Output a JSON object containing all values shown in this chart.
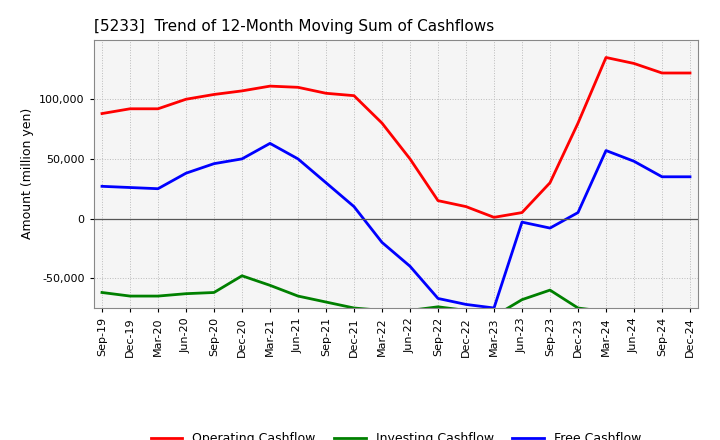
{
  "title": "[5233]  Trend of 12-Month Moving Sum of Cashflows",
  "ylabel": "Amount (million yen)",
  "x_labels": [
    "Sep-19",
    "Dec-19",
    "Mar-20",
    "Jun-20",
    "Sep-20",
    "Dec-20",
    "Mar-21",
    "Jun-21",
    "Sep-21",
    "Dec-21",
    "Mar-22",
    "Jun-22",
    "Sep-22",
    "Dec-22",
    "Mar-23",
    "Jun-23",
    "Sep-23",
    "Dec-23",
    "Mar-24",
    "Jun-24",
    "Sep-24",
    "Dec-24"
  ],
  "operating": [
    88000,
    92000,
    92000,
    100000,
    104000,
    107000,
    111000,
    110000,
    105000,
    103000,
    80000,
    50000,
    15000,
    10000,
    1000,
    5000,
    30000,
    80000,
    135000,
    130000,
    122000,
    122000
  ],
  "investing": [
    -62000,
    -65000,
    -65000,
    -63000,
    -62000,
    -48000,
    -56000,
    -65000,
    -70000,
    -75000,
    -77000,
    -77000,
    -74000,
    -77000,
    -82000,
    -68000,
    -60000,
    -75000,
    -78000,
    -80000,
    -82000,
    -77000
  ],
  "free": [
    27000,
    26000,
    25000,
    38000,
    46000,
    50000,
    63000,
    50000,
    30000,
    10000,
    -20000,
    -40000,
    -67000,
    -72000,
    -75000,
    -3000,
    -8000,
    5000,
    57000,
    48000,
    35000,
    35000
  ],
  "operating_color": "#ff0000",
  "investing_color": "#008000",
  "free_color": "#0000ff",
  "ylim": [
    -75000,
    150000
  ],
  "yticks": [
    -50000,
    0,
    50000,
    100000
  ],
  "background_color": "#ffffff",
  "plot_bg_color": "#f5f5f5",
  "grid_color": "#bbbbbb"
}
